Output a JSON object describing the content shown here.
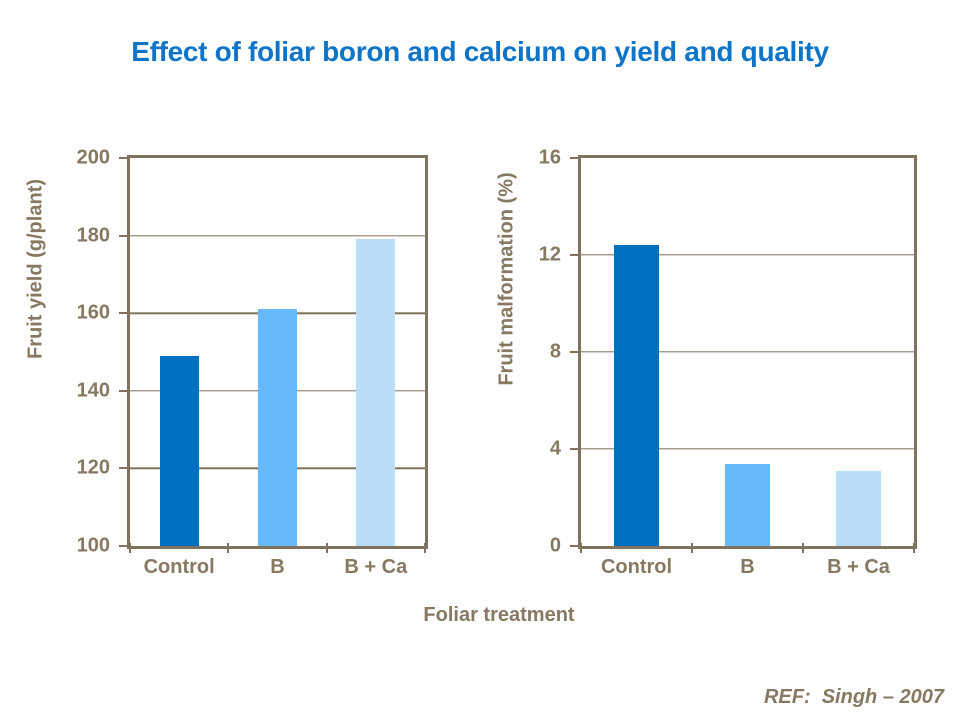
{
  "slide": {
    "title": "Effect of foliar boron and calcium on yield and quality",
    "xlabel": "Foliar treatment",
    "reference": "REF:  Singh – 2007"
  },
  "colors": {
    "title_blue": "#0d74c8",
    "axis_line_taupe": "#80725c",
    "axis_text_taupe": "#877862",
    "bar_dark_blue": "#0070c0",
    "bar_medium_blue": "#66b9fa",
    "bar_light_blue": "#badef8",
    "background": "#ffffff"
  },
  "chart_data": [
    {
      "type": "bar",
      "title": "",
      "ylabel": "Fruit yield (g/plant)",
      "xlabel": "Foliar treatment",
      "categories": [
        "Control",
        "B",
        "B + Ca"
      ],
      "values": [
        149,
        161,
        179
      ],
      "ylim": [
        100,
        200
      ],
      "yticks": [
        100,
        120,
        140,
        160,
        180,
        200
      ],
      "grid": true,
      "legend": "none",
      "bar_colors": [
        "#0070c0",
        "#66b9fa",
        "#badef8"
      ]
    },
    {
      "type": "bar",
      "title": "",
      "ylabel": "Fruit malformation (%)",
      "xlabel": "Foliar treatment",
      "categories": [
        "Control",
        "B",
        "B + Ca"
      ],
      "values": [
        12.4,
        3.4,
        3.1
      ],
      "ylim": [
        0,
        16
      ],
      "yticks": [
        0,
        4,
        8,
        12,
        16
      ],
      "grid": true,
      "legend": "none",
      "bar_colors": [
        "#0070c0",
        "#66b9fa",
        "#badef8"
      ]
    }
  ]
}
